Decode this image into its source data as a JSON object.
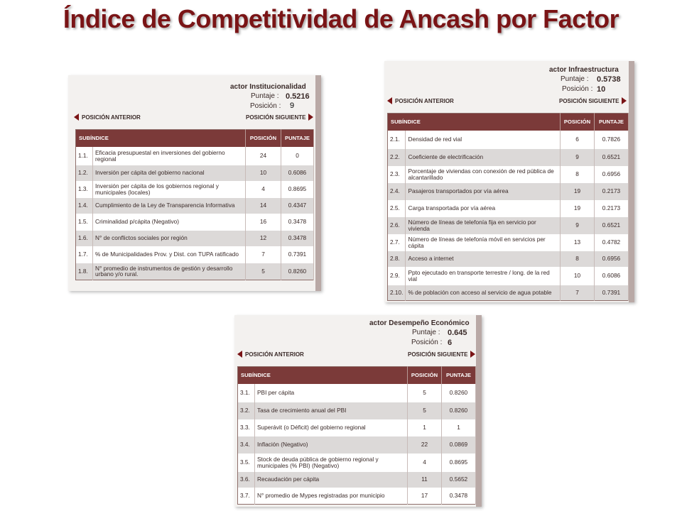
{
  "slide_title": "Índice de Competitividad de Ancash por Factor",
  "panels": [
    {
      "factor_title": "actor Institucionalidad",
      "puntaje_label": "Puntaje :",
      "puntaje_value": "0.5216",
      "posicion_label": "Posición :",
      "posicion_value": "9",
      "nav_prev": "POSICIÓN ANTERIOR",
      "nav_next": "POSICIÓN SIGUIENTE",
      "headers": [
        "SUBÍNDICE",
        "POSICIÓN",
        "PUNTAJE"
      ],
      "rows": [
        {
          "num": "1.1.",
          "name": "Eficacia presupuestal en inversiones del gobierno regional",
          "pos": "24",
          "score": "0"
        },
        {
          "num": "1.2.",
          "name": "Inversión per cápita del gobierno nacional",
          "pos": "10",
          "score": "0.6086"
        },
        {
          "num": "1.3.",
          "name": "Inversión per cápita de los gobiernos regional y municipales (locales)",
          "pos": "4",
          "score": "0.8695"
        },
        {
          "num": "1.4.",
          "name": "Cumplimiento de la Ley de Transparencia Informativa",
          "pos": "14",
          "score": "0.4347"
        },
        {
          "num": "1.5.",
          "name": "Criminalidad p/cápita (Negativo)",
          "pos": "16",
          "score": "0.3478"
        },
        {
          "num": "1.6.",
          "name": "N° de conflictos sociales por región",
          "pos": "12",
          "score": "0.3478"
        },
        {
          "num": "1.7.",
          "name": "% de Municipalidades Prov. y Dist. con TUPA ratificado",
          "pos": "7",
          "score": "0.7391"
        },
        {
          "num": "1.8.",
          "name": "N° promedio de instrumentos de gestión y desarrollo urbano y/o rural.",
          "pos": "5",
          "score": "0.8260"
        }
      ]
    },
    {
      "factor_title": "actor Infraestructura",
      "puntaje_label": "Puntaje :",
      "puntaje_value": "0.5738",
      "posicion_label": "Posición :",
      "posicion_value": "10",
      "nav_prev": "POSICIÓN ANTERIOR",
      "nav_next": "POSICIÓN SIGUIENTE",
      "headers": [
        "SUBÍNDICE",
        "POSICIÓN",
        "PUNTAJE"
      ],
      "rows": [
        {
          "num": "2.1.",
          "name": "Densidad de red vial",
          "pos": "6",
          "score": "0.7826"
        },
        {
          "num": "2.2.",
          "name": "Coeficiente de electrificación",
          "pos": "9",
          "score": "0.6521"
        },
        {
          "num": "2.3.",
          "name": "Porcentaje de viviendas con conexión de red pública de alcantarillado",
          "pos": "8",
          "score": "0.6956"
        },
        {
          "num": "2.4.",
          "name": "Pasajeros transportados por vía aérea",
          "pos": "19",
          "score": "0.2173"
        },
        {
          "num": "2.5.",
          "name": "Carga transportada por vía aérea",
          "pos": "19",
          "score": "0.2173"
        },
        {
          "num": "2.6.",
          "name": "Número de líneas de telefonía fija en servicio por vivienda",
          "pos": "9",
          "score": "0.6521"
        },
        {
          "num": "2.7.",
          "name": "Número de líneas de telefonía móvil en servicios per cápita",
          "pos": "13",
          "score": "0.4782"
        },
        {
          "num": "2.8.",
          "name": "Acceso a internet",
          "pos": "8",
          "score": "0.6956"
        },
        {
          "num": "2.9.",
          "name": "Ppto ejecutado en transporte terrestre / long. de la red vial",
          "pos": "10",
          "score": "0.6086"
        },
        {
          "num": "2.10.",
          "name": "% de población con acceso al servicio de agua potable",
          "pos": "7",
          "score": "0.7391"
        }
      ]
    },
    {
      "factor_title": "actor Desempeño Económico",
      "puntaje_label": "Puntaje :",
      "puntaje_value": "0.645",
      "posicion_label": "Posición :",
      "posicion_value": "6",
      "nav_prev": "POSICIÓN ANTERIOR",
      "nav_next": "POSICIÓN SIGUIENTE",
      "headers": [
        "SUBÍNDICE",
        "POSICIÓN",
        "PUNTAJE"
      ],
      "rows": [
        {
          "num": "3.1.",
          "name": "PBI per cápita",
          "pos": "5",
          "score": "0.8260"
        },
        {
          "num": "3.2.",
          "name": "Tasa de crecimiento anual del PBI",
          "pos": "5",
          "score": "0.8260"
        },
        {
          "num": "3.3.",
          "name": "Superávit (o Déficit) del gobierno regional",
          "pos": "1",
          "score": "1"
        },
        {
          "num": "3.4.",
          "name": "Inflación (Negativo)",
          "pos": "22",
          "score": "0.0869"
        },
        {
          "num": "3.5.",
          "name": "Stock de deuda pública de gobierno regional y municipales (% PBI) (Negativo)",
          "pos": "4",
          "score": "0.8695"
        },
        {
          "num": "3.6.",
          "name": "Recaudación per cápita",
          "pos": "11",
          "score": "0.5652"
        },
        {
          "num": "3.7.",
          "name": "N° promedio de Mypes registradas por municipio",
          "pos": "17",
          "score": "0.3478"
        }
      ]
    }
  ]
}
